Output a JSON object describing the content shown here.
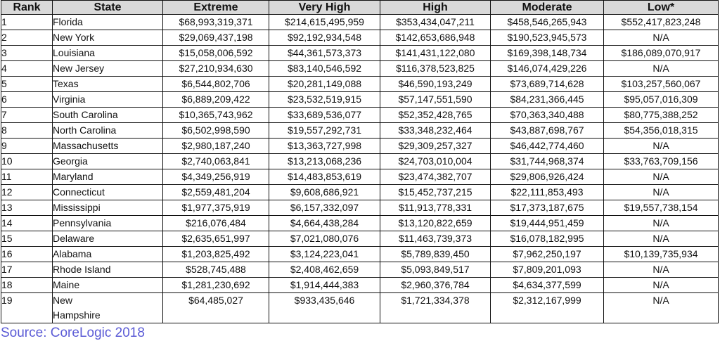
{
  "table": {
    "headers": [
      "Rank",
      "State",
      "Extreme",
      "Very High",
      "High",
      "Moderate",
      "Low*"
    ],
    "na_color": "#ff1a1a",
    "rows": [
      {
        "rank": "1",
        "state": "Florida",
        "extreme": "$68,993,319,371",
        "very_high": "$214,615,495,959",
        "high": "$353,434,047,211",
        "moderate": "$458,546,265,943",
        "low": "$552,417,823,248"
      },
      {
        "rank": "2",
        "state": "New York",
        "extreme": "$29,069,437,198",
        "very_high": "$92,192,934,548",
        "high": "$142,653,686,948",
        "moderate": "$190,523,945,573",
        "low": "N/A"
      },
      {
        "rank": "3",
        "state": "Louisiana",
        "extreme": "$15,058,006,592",
        "very_high": "$44,361,573,373",
        "high": "$141,431,122,080",
        "moderate": "$169,398,148,734",
        "low": "$186,089,070,917"
      },
      {
        "rank": "4",
        "state": "New Jersey",
        "extreme": "$27,210,934,630",
        "very_high": "$83,140,546,592",
        "high": "$116,378,523,825",
        "moderate": "$146,074,429,226",
        "low": "N/A"
      },
      {
        "rank": "5",
        "state": "Texas",
        "extreme": "$6,544,802,706",
        "very_high": "$20,281,149,088",
        "high": "$46,590,193,249",
        "moderate": "$73,689,714,628",
        "low": "$103,257,560,067"
      },
      {
        "rank": "6",
        "state": "Virginia",
        "extreme": "$6,889,209,422",
        "very_high": "$23,532,519,915",
        "high": "$57,147,551,590",
        "moderate": "$84,231,366,445",
        "low": "$95,057,016,309"
      },
      {
        "rank": "7",
        "state": "South Carolina",
        "extreme": "$10,365,743,962",
        "very_high": "$33,689,536,077",
        "high": "$52,352,428,765",
        "moderate": "$70,363,340,488",
        "low": "$80,775,388,252"
      },
      {
        "rank": "8",
        "state": "North Carolina",
        "extreme": "$6,502,998,590",
        "very_high": "$19,557,292,731",
        "high": "$33,348,232,464",
        "moderate": "$43,887,698,767",
        "low": "$54,356,018,315"
      },
      {
        "rank": "9",
        "state": "Massachusetts",
        "extreme": "$2,980,187,240",
        "very_high": "$13,363,727,998",
        "high": "$29,309,257,327",
        "moderate": "$46,442,774,460",
        "low": "N/A"
      },
      {
        "rank": "10",
        "state": "Georgia",
        "extreme": "$2,740,063,841",
        "very_high": "$13,213,068,236",
        "high": "$24,703,010,004",
        "moderate": "$31,744,968,374",
        "low": "$33,763,709,156"
      },
      {
        "rank": "11",
        "state": "Maryland",
        "extreme": "$4,349,256,919",
        "very_high": "$14,483,853,619",
        "high": "$23,474,382,707",
        "moderate": "$29,806,926,424",
        "low": "N/A"
      },
      {
        "rank": "12",
        "state": "Connecticut",
        "extreme": "$2,559,481,204",
        "very_high": "$9,608,686,921",
        "high": "$15,452,737,215",
        "moderate": "$22,111,853,493",
        "low": "N/A"
      },
      {
        "rank": "13",
        "state": "Mississippi",
        "extreme": "$1,977,375,919",
        "very_high": "$6,157,332,097",
        "high": "$11,913,778,331",
        "moderate": "$17,373,187,675",
        "low": "$19,557,738,154"
      },
      {
        "rank": "14",
        "state": "Pennsylvania",
        "extreme": "$216,076,484",
        "very_high": "$4,664,438,284",
        "high": "$13,120,822,659",
        "moderate": "$19,444,951,459",
        "low": "N/A"
      },
      {
        "rank": "15",
        "state": "Delaware",
        "extreme": "$2,635,651,997",
        "very_high": "$7,021,080,076",
        "high": "$11,463,739,373",
        "moderate": "$16,078,182,995",
        "low": "N/A"
      },
      {
        "rank": "16",
        "state": "Alabama",
        "extreme": "$1,203,825,492",
        "very_high": "$3,124,223,041",
        "high": "$5,789,839,450",
        "moderate": "$7,962,250,197",
        "low": "$10,139,735,934"
      },
      {
        "rank": "17",
        "state": "Rhode Island",
        "extreme": "$528,745,488",
        "very_high": "$2,408,462,659",
        "high": "$5,093,849,517",
        "moderate": "$7,809,201,093",
        "low": "N/A"
      },
      {
        "rank": "18",
        "state": "Maine",
        "extreme": "$1,281,230,692",
        "very_high": "$1,914,444,383",
        "high": "$2,960,376,784",
        "moderate": "$4,634,377,599",
        "low": "N/A"
      },
      {
        "rank": "19",
        "state": "New Hampshire",
        "extreme": "$64,485,027",
        "very_high": "$933,435,646",
        "high": "$1,721,334,378",
        "moderate": "$2,312,167,999",
        "low": "N/A"
      }
    ]
  },
  "source": "Source: CoreLogic 2018"
}
